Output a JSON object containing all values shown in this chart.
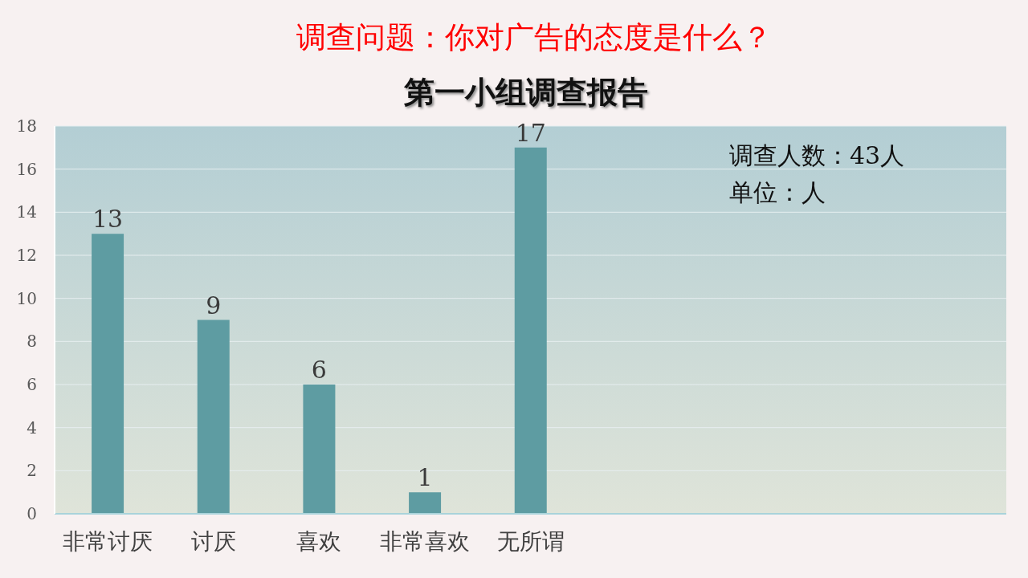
{
  "chart_data": {
    "type": "bar",
    "title": "调查问题：你对广告的态度是什么？",
    "subtitle": "第一小组调查报告",
    "categories": [
      "非常讨厌",
      "讨厌",
      "喜欢",
      "非常喜欢",
      "无所谓",
      null,
      null,
      null,
      null
    ],
    "values": [
      13,
      9,
      6,
      1,
      17,
      null,
      null,
      null,
      null
    ],
    "color": "#5e9ca2",
    "ylim": [
      0,
      18
    ],
    "yticks": [
      0,
      2,
      4,
      6,
      8,
      10,
      12,
      14,
      16,
      18
    ],
    "grid": "y",
    "data_labels": true,
    "annotations": [
      "调查人数：43人",
      "单位：人"
    ]
  }
}
